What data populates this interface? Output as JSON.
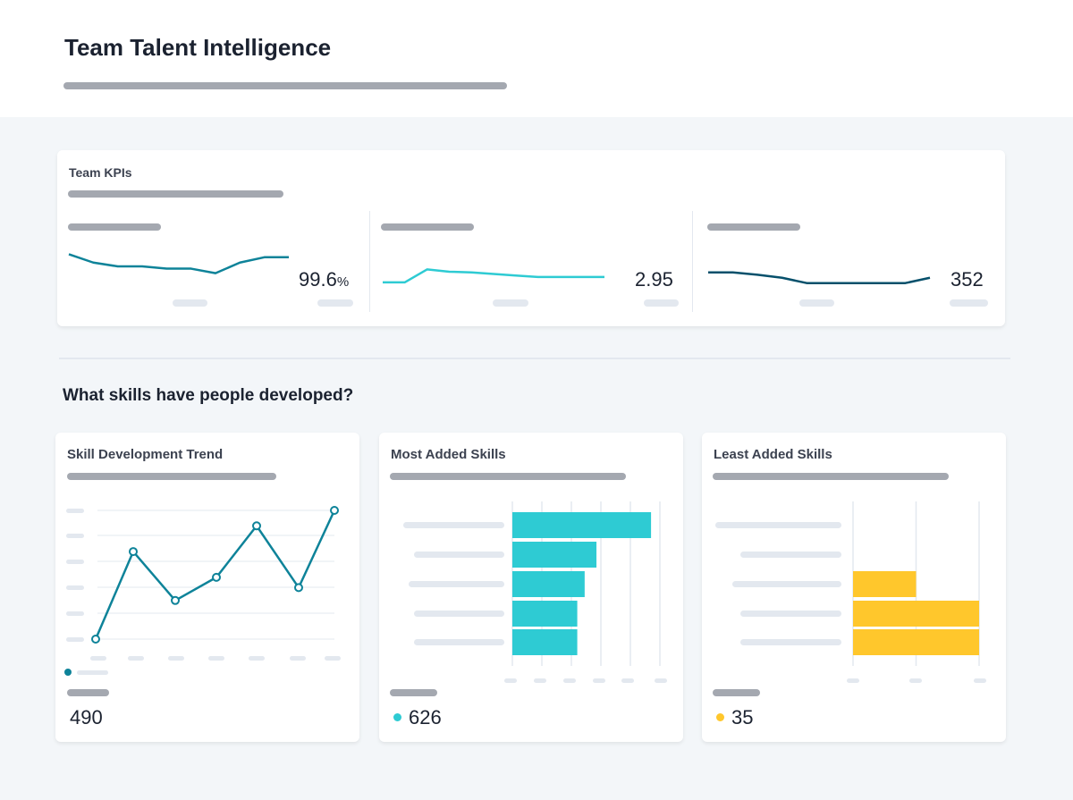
{
  "header": {
    "title": "Team Talent Intelligence"
  },
  "kpis": {
    "title": "Team KPIs",
    "items": [
      {
        "value": "99.6",
        "unit": "%",
        "color": "#0e8399",
        "series": [
          5.6,
          4.5,
          4,
          4,
          3.7,
          3.7,
          3.1,
          4.5,
          5.2,
          5.2
        ]
      },
      {
        "value": "2.95",
        "unit": "",
        "color": "#2ecbd3",
        "series": [
          1.9,
          1.9,
          3.6,
          3.3,
          3.2,
          3,
          2.8,
          2.6,
          2.6,
          2.6,
          2.6
        ]
      },
      {
        "value": "352",
        "unit": "",
        "color": "#06506b",
        "series": [
          3.2,
          3.2,
          2.9,
          2.5,
          1.8,
          1.8,
          1.8,
          1.8,
          1.8,
          2.5
        ]
      }
    ]
  },
  "section": {
    "title": "What skills have people developed?"
  },
  "trend": {
    "title": "Skill Development Trend",
    "value": "490",
    "color": "#0e8399",
    "series": [
      0,
      3.4,
      1.5,
      2.4,
      4.4,
      2,
      5
    ]
  },
  "most": {
    "title": "Most Added Skills",
    "value": "626",
    "color": "#2ecbd3",
    "values": [
      4.7,
      2.85,
      2.45,
      2.2,
      2.2
    ]
  },
  "least": {
    "title": "Least Added Skills",
    "value": "35",
    "color": "#ffc72c",
    "values": [
      0,
      0,
      1,
      2,
      2
    ]
  }
}
